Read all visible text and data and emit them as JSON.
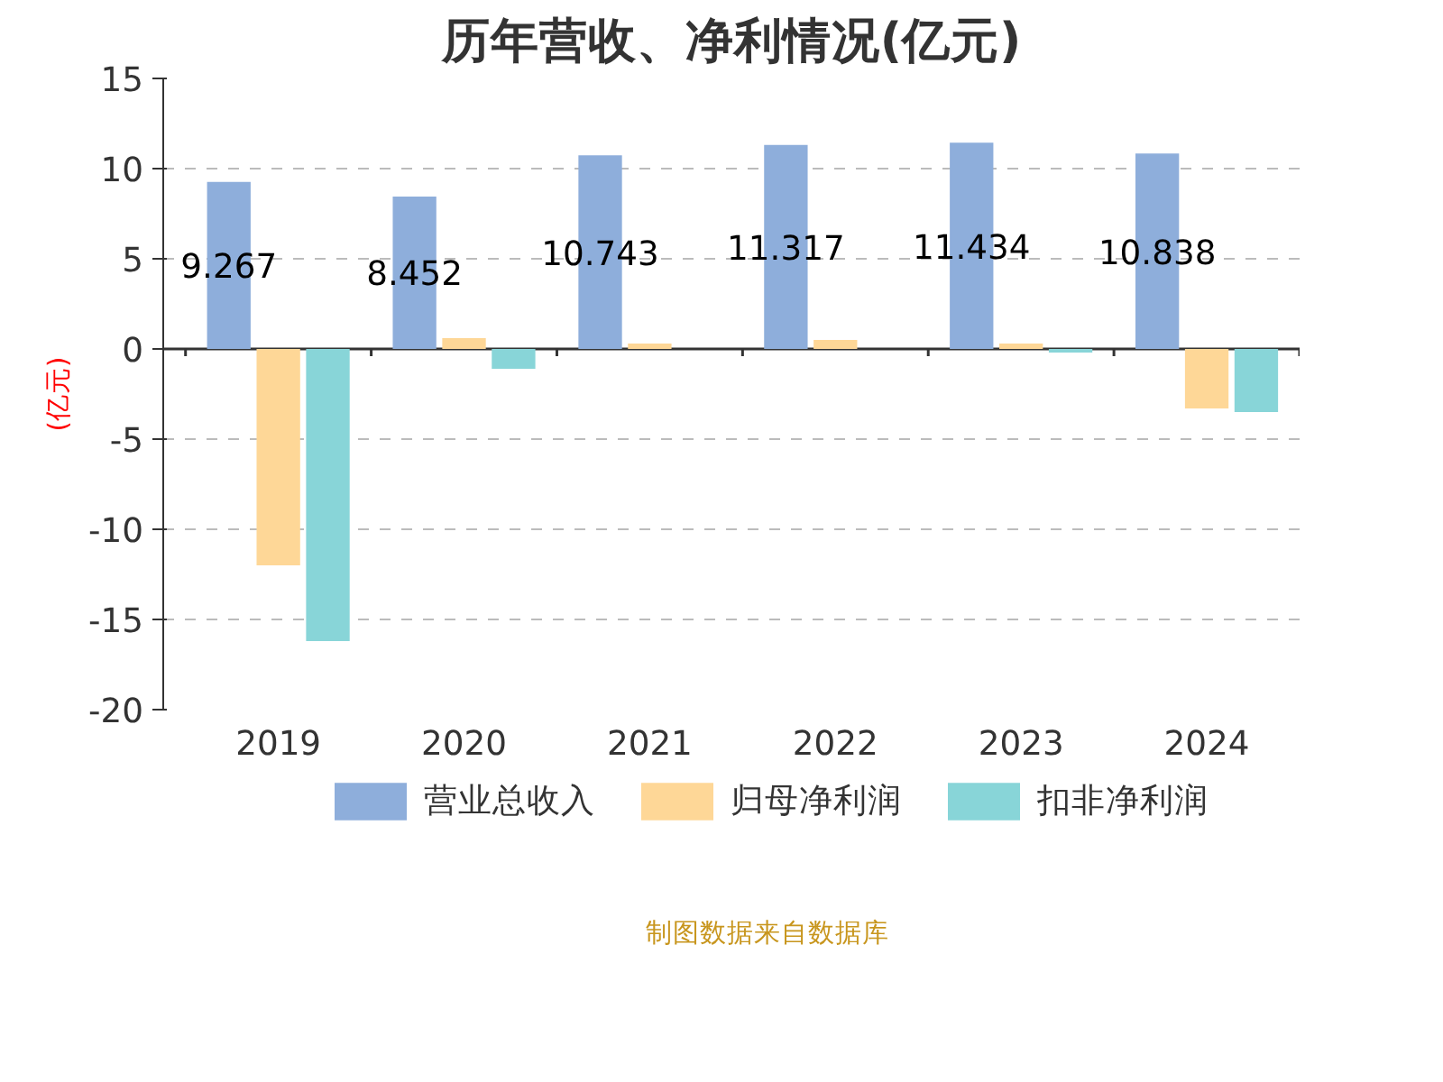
{
  "chart_data": {
    "type": "bar",
    "title": "历年营收、净利情况(亿元)",
    "ylabel": "(亿元)",
    "categories": [
      "2019",
      "2020",
      "2021",
      "2022",
      "2023",
      "2024"
    ],
    "series": [
      {
        "name": "营业总收入",
        "color": "#8eaedb",
        "values": [
          9.267,
          8.452,
          10.743,
          11.317,
          11.434,
          10.838
        ],
        "value_labels": [
          "9.267",
          "8.452",
          "10.743",
          "11.317",
          "11.434",
          "10.838"
        ]
      },
      {
        "name": "归母净利润",
        "color": "#fed797",
        "values": [
          -12.0,
          0.6,
          0.3,
          0.5,
          0.3,
          -3.3
        ]
      },
      {
        "name": "扣非净利润",
        "color": "#88d5d8",
        "values": [
          -16.2,
          -1.1,
          0.0,
          0.0,
          -0.2,
          -3.5
        ]
      }
    ],
    "ylim": [
      -20,
      15
    ],
    "yticks": [
      -20,
      -15,
      -10,
      -5,
      0,
      5,
      10,
      15
    ],
    "grid": "y",
    "legend": "bottom",
    "annotations": [
      "制图数据来自数据库"
    ]
  }
}
